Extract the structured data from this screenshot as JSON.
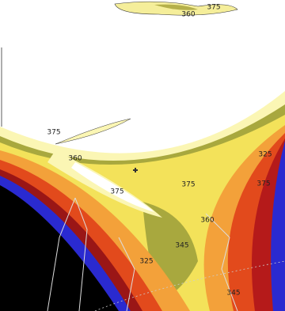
{
  "contour_labels": [
    "360",
    "375",
    "375",
    "360",
    "375",
    "375",
    "360",
    "345",
    "325",
    "325",
    "375",
    "345"
  ]
}
